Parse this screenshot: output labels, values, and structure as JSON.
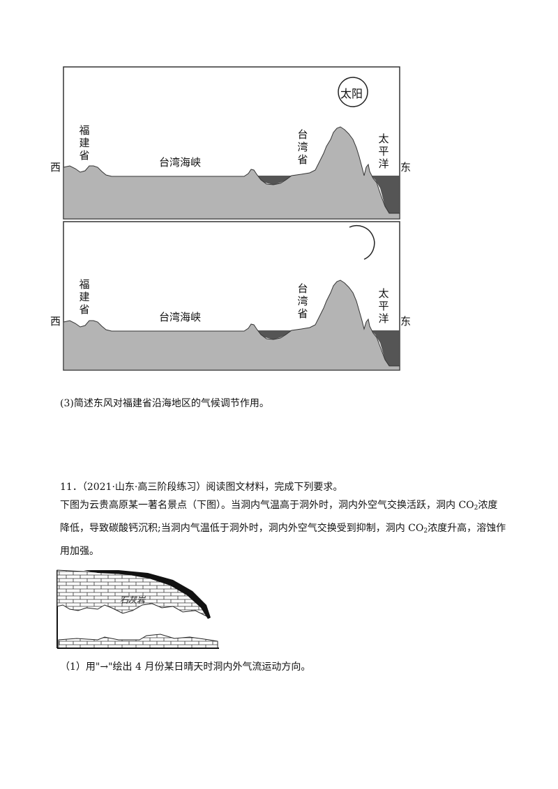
{
  "figure1": {
    "panel_top": {
      "sun_label": "太阳",
      "west": "西",
      "east": "东",
      "fujian": "福建省",
      "strait": "台湾海峡",
      "taiwan": "台湾省",
      "pacific": "太平洋"
    },
    "panel_bottom": {
      "west": "西",
      "east": "东",
      "fujian": "福建省",
      "strait": "台湾海峡",
      "taiwan": "台湾省",
      "pacific": "太平洋"
    }
  },
  "question3": "(3)简述东风对福建省沿海地区的气候调节作用。",
  "question11": {
    "heading": "11．（2021·山东·高三阶段练习）阅读图文材料，完成下列要求。",
    "para_part1": "下图为云贵高原某一著名景点（下图）。当洞内气温高于洞外时，洞内外空气交换活跃，洞内 CO",
    "para_sub1": "2",
    "para_part2": "浓度降低，导致碳酸钙沉积;当洞内气温低于洞外时，洞内外空气交换受到抑制，洞内 CO",
    "para_sub2": "2",
    "para_part3": "浓度升高，溶蚀作用加强。",
    "rock_label": "石灰岩",
    "sub1": "（1）用\"→\"绘出 4 月份某日晴天时洞内外气流运动方向。"
  }
}
